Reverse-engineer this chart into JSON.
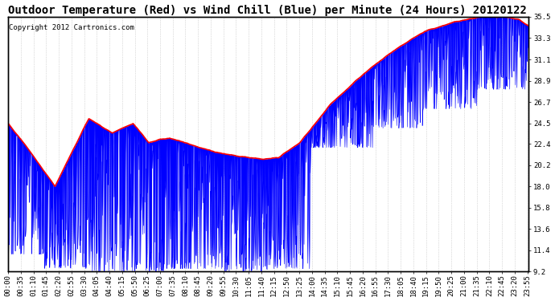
{
  "title": "Outdoor Temperature (Red) vs Wind Chill (Blue) per Minute (24 Hours) 20120122",
  "copyright": "Copyright 2012 Cartronics.com",
  "ylabel_right_ticks": [
    9.2,
    11.4,
    13.6,
    15.8,
    18.0,
    20.2,
    22.4,
    24.5,
    26.7,
    28.9,
    31.1,
    33.3,
    35.5
  ],
  "ymin": 9.2,
  "ymax": 35.5,
  "temp_color": "#ff0000",
  "windchill_color": "#0000ff",
  "background_color": "#ffffff",
  "grid_color": "#bbbbbb",
  "title_fontsize": 10,
  "copyright_fontsize": 6.5,
  "tick_fontsize": 6.5,
  "figwidth": 6.9,
  "figheight": 3.75,
  "dpi": 100
}
